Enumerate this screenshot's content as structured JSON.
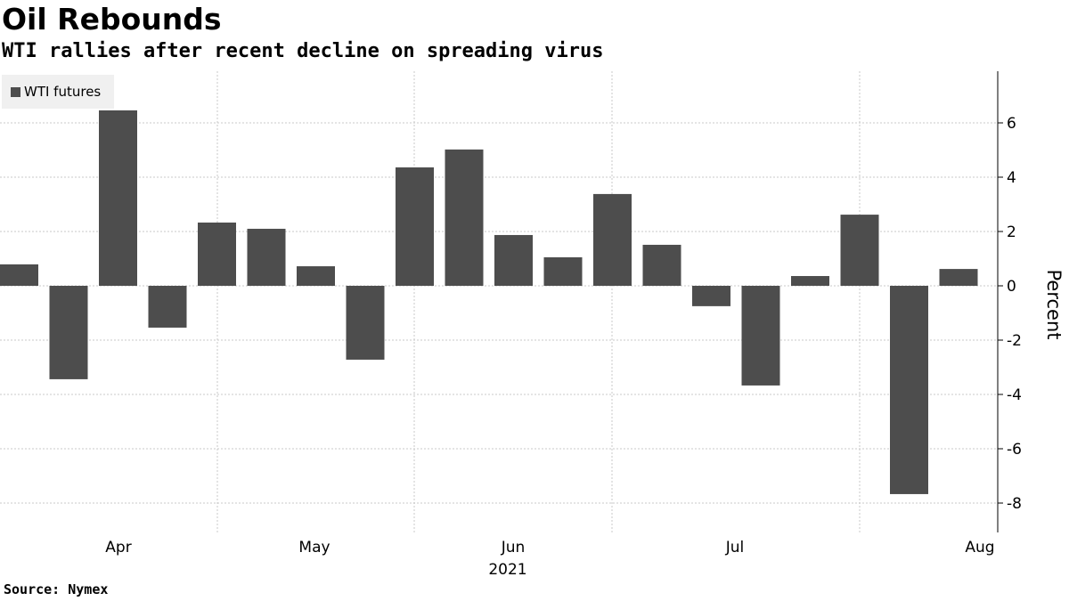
{
  "title": "Oil Rebounds",
  "subtitle": "WTI rallies after recent decline on spreading virus",
  "source": "Source: Nymex",
  "chart_data": {
    "type": "bar",
    "title": "Oil Rebounds",
    "subtitle": "WTI rallies after recent decline on spreading virus",
    "xlabel": "2021",
    "ylabel": "Percent",
    "ylim": [
      -9,
      7.8
    ],
    "yticks": [
      6,
      4,
      2,
      0,
      -2,
      -4,
      -6,
      -8
    ],
    "ytick_labels": [
      "6",
      "4",
      "2",
      "0",
      "-2",
      "-4",
      "-6",
      "-8"
    ],
    "month_labels": [
      "Apr",
      "May",
      "Jun",
      "Jul",
      "Aug"
    ],
    "year_label": "2021",
    "legend": [
      "WTI futures"
    ],
    "legend_position": "top-left",
    "grid": true,
    "series": [
      {
        "name": "WTI futures",
        "color": "#4d4d4d",
        "values": [
          0.79,
          -3.44,
          6.46,
          -1.54,
          2.33,
          2.1,
          0.72,
          -2.72,
          4.36,
          5.02,
          1.87,
          1.05,
          3.38,
          1.51,
          -0.75,
          -3.67,
          0.36,
          2.62,
          -7.67,
          0.62
        ]
      }
    ]
  }
}
